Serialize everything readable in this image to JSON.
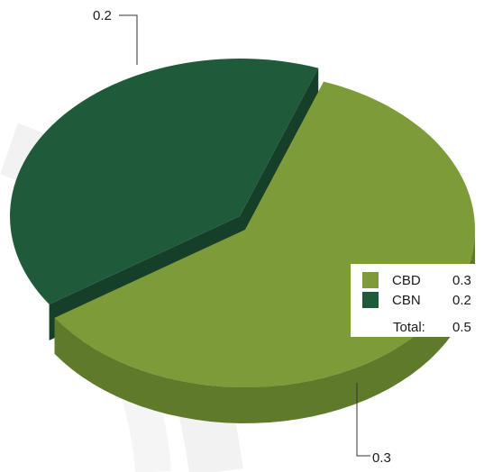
{
  "chart_data": {
    "type": "pie",
    "style": "3d-exploded",
    "title": "",
    "slices": [
      {
        "name": "CBD",
        "value": 0.3,
        "color": "#7e9b3a",
        "side_color": "#5f7a2a",
        "label": "0.3"
      },
      {
        "name": "CBN",
        "value": 0.2,
        "color": "#1f5a3a",
        "side_color": "#153f28",
        "label": "0.2"
      }
    ],
    "legend": {
      "placement": "right",
      "entries": [
        {
          "name": "CBD",
          "value": "0.3",
          "color": "#7e9b3a"
        },
        {
          "name": "CBN",
          "value": "0.2",
          "color": "#1f5a3a"
        }
      ],
      "total_label": "Total:",
      "total_value": "0.5"
    }
  }
}
